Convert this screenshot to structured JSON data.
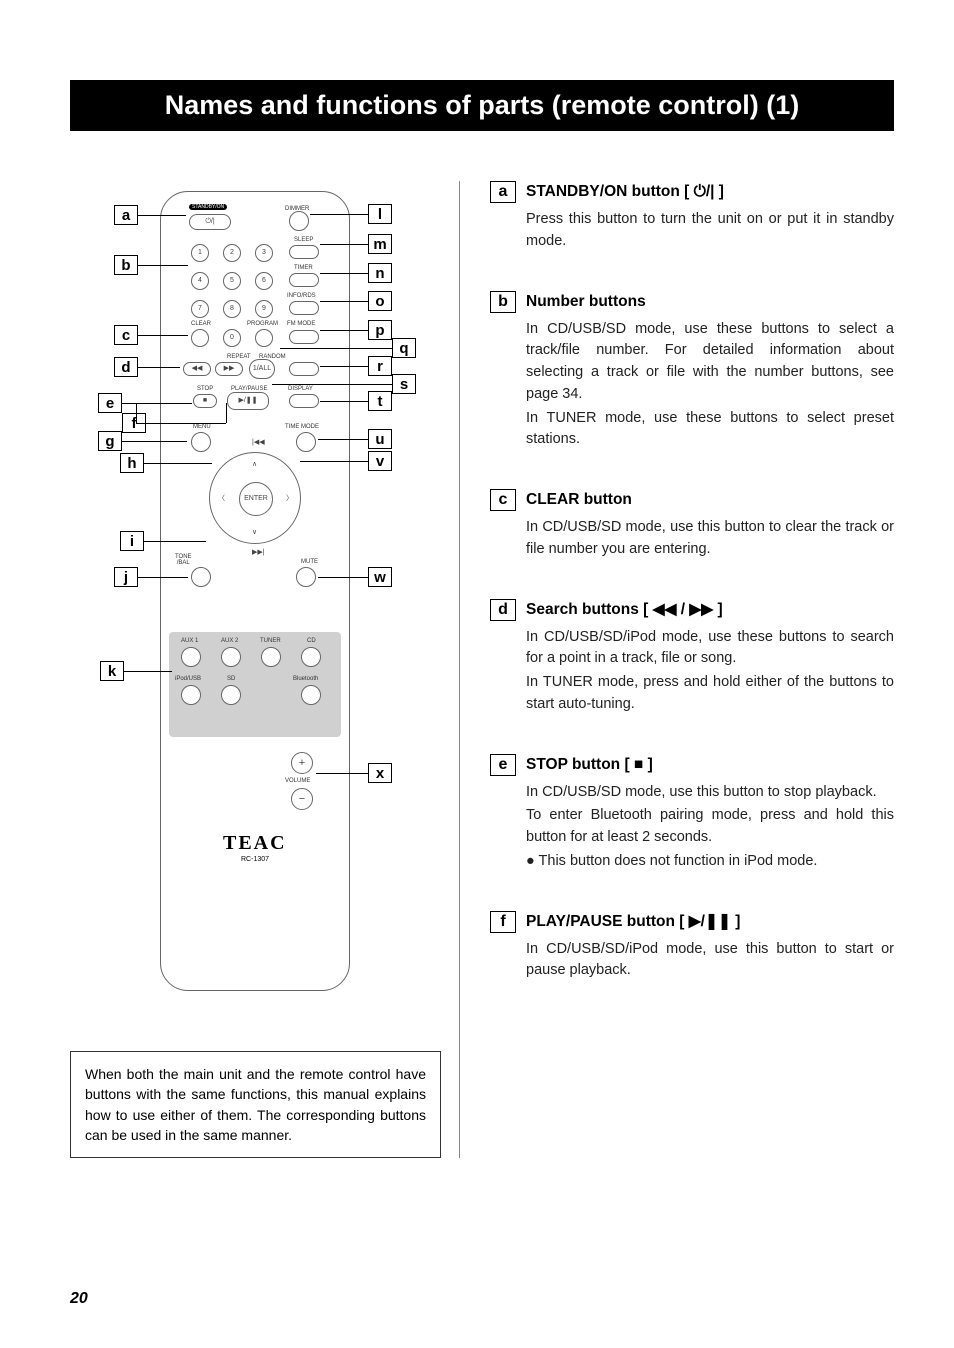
{
  "title": "Names and functions of parts (remote control) (1)",
  "note": "When both the main unit and the remote control have buttons with the same functions, this manual explains how to use either of them. The corresponding buttons can be used in the same manner.",
  "page_number": "20",
  "remote": {
    "brand": "TEAC",
    "model": "RC-1307",
    "labels": {
      "standby_on": "STANDBY/ON",
      "dimmer": "DIMMER",
      "sleep": "SLEEP",
      "timer": "TIMER",
      "info_rds": "INFO/RDS",
      "clear": "CLEAR",
      "program": "PROGRAM",
      "fm_mode": "FM MODE",
      "repeat": "REPEAT",
      "random": "RANDOM",
      "stop": "STOP",
      "play_pause": "PLAY/PAUSE",
      "display": "DISPLAY",
      "menu": "MENU",
      "time_mode": "TIME MODE",
      "enter": "ENTER",
      "tone_bal": "TONE\n/BAL",
      "mute": "MUTE",
      "aux1": "AUX 1",
      "aux2": "AUX 2",
      "tuner": "TUNER",
      "cd": "CD",
      "ipod_usb": "iPod/USB",
      "sd": "SD",
      "bluetooth": "Bluetooth",
      "volume": "VOLUME",
      "one_all": "1/ALL"
    },
    "left_callouts": [
      "a",
      "b",
      "c",
      "d",
      "e",
      "f",
      "g",
      "h",
      "i",
      "j",
      "k"
    ],
    "right_callouts": [
      "l",
      "m",
      "n",
      "o",
      "p",
      "q",
      "r",
      "s",
      "t",
      "u",
      "v",
      "w",
      "x"
    ]
  },
  "functions": [
    {
      "id": "a",
      "title": "STANDBY/ON button [ ⏻/| ]",
      "body": [
        "Press this button to turn the unit on or put it in standby mode."
      ]
    },
    {
      "id": "b",
      "title": "Number buttons",
      "body": [
        "In CD/USB/SD mode, use these buttons to select a track/file number. For detailed information about selecting a track or file with the number buttons, see page 34.",
        "In TUNER mode, use these buttons to select preset stations."
      ]
    },
    {
      "id": "c",
      "title": "CLEAR button",
      "body": [
        "In CD/USB/SD mode, use this button to clear the track or file number you are entering."
      ]
    },
    {
      "id": "d",
      "title": "Search buttons [ ◀◀ / ▶▶ ]",
      "body": [
        "In CD/USB/SD/iPod mode, use these buttons to search for a point in a track, file or song.",
        "In TUNER mode, press and hold either of the buttons to start auto-tuning."
      ]
    },
    {
      "id": "e",
      "title": "STOP button [ ■ ]",
      "body": [
        "In CD/USB/SD mode, use this button to stop playback.",
        "To enter Bluetooth pairing mode, press and hold this button for at least 2 seconds.",
        "● This button does not function in iPod mode."
      ]
    },
    {
      "id": "f",
      "title": "PLAY/PAUSE button [ ▶/❚❚ ]",
      "body": [
        "In CD/USB/SD/iPod mode, use this button to start or pause playback."
      ]
    }
  ],
  "colors": {
    "bg": "#ffffff",
    "title_bg": "#000000",
    "title_fg": "#ffffff",
    "text": "#222222",
    "grey": "#d0d0d0",
    "line": "#666666"
  },
  "fonts": {
    "title_size": 27,
    "heading_size": 15.5,
    "body_size": 14.5,
    "note_size": 14
  }
}
